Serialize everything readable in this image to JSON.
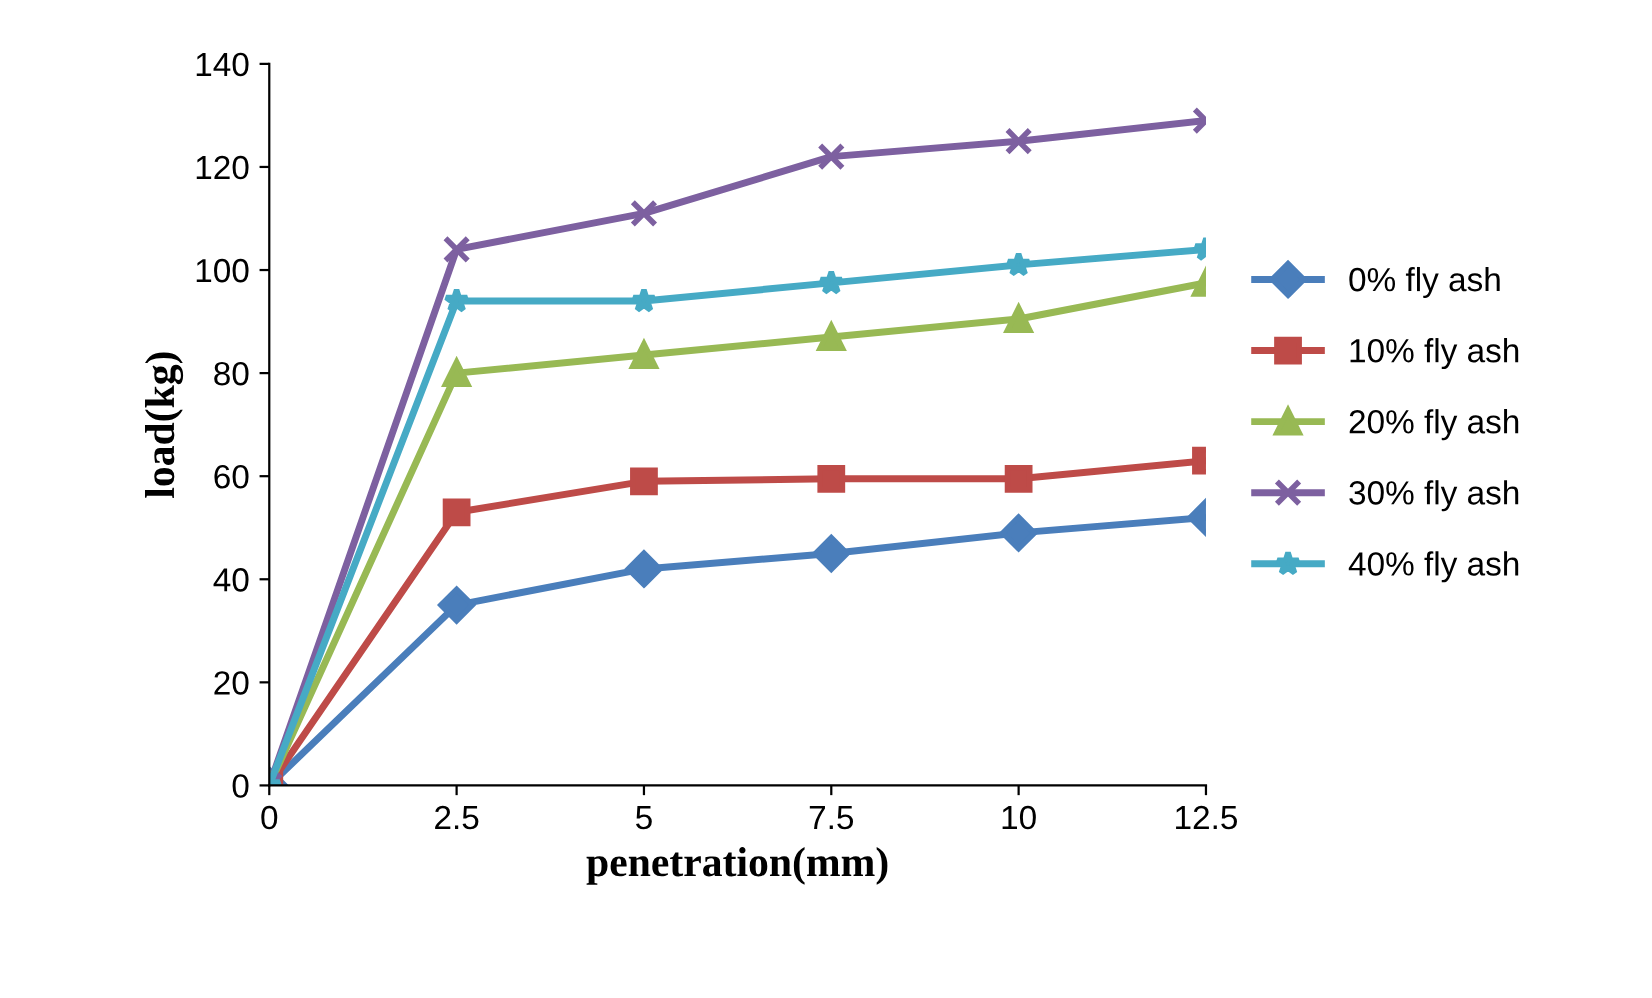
{
  "chart_data": {
    "type": "line",
    "xlabel": "penetration(mm)",
    "ylabel": "load(kg)",
    "x": [
      0,
      2.5,
      5,
      7.5,
      10,
      12.5
    ],
    "xlim": [
      0,
      12.5
    ],
    "xticks": [
      0,
      2.5,
      5,
      7.5,
      10,
      12.5
    ],
    "ylim": [
      0,
      140
    ],
    "yticks": [
      0,
      20,
      40,
      60,
      80,
      100,
      120,
      140
    ],
    "grid": false,
    "legend": "right",
    "series": [
      {
        "name": "0% fly ash",
        "color": "#4a7ebb",
        "marker": "diamond",
        "values": [
          0,
          35,
          42,
          45,
          49,
          52
        ]
      },
      {
        "name": "10% fly ash",
        "color": "#be4b48",
        "marker": "square",
        "values": [
          0,
          53,
          59,
          59.5,
          59.5,
          63
        ]
      },
      {
        "name": "20% fly ash",
        "color": "#98b954",
        "marker": "triangle",
        "values": [
          0,
          80,
          83.5,
          87,
          90.5,
          97.5
        ]
      },
      {
        "name": "30% fly ash",
        "color": "#7d60a0",
        "marker": "cross",
        "values": [
          0,
          104,
          111,
          122,
          125,
          129
        ]
      },
      {
        "name": "40% fly ash",
        "color": "#46aac5",
        "marker": "star",
        "values": [
          0,
          94,
          94,
          97.5,
          101,
          104
        ]
      }
    ]
  }
}
